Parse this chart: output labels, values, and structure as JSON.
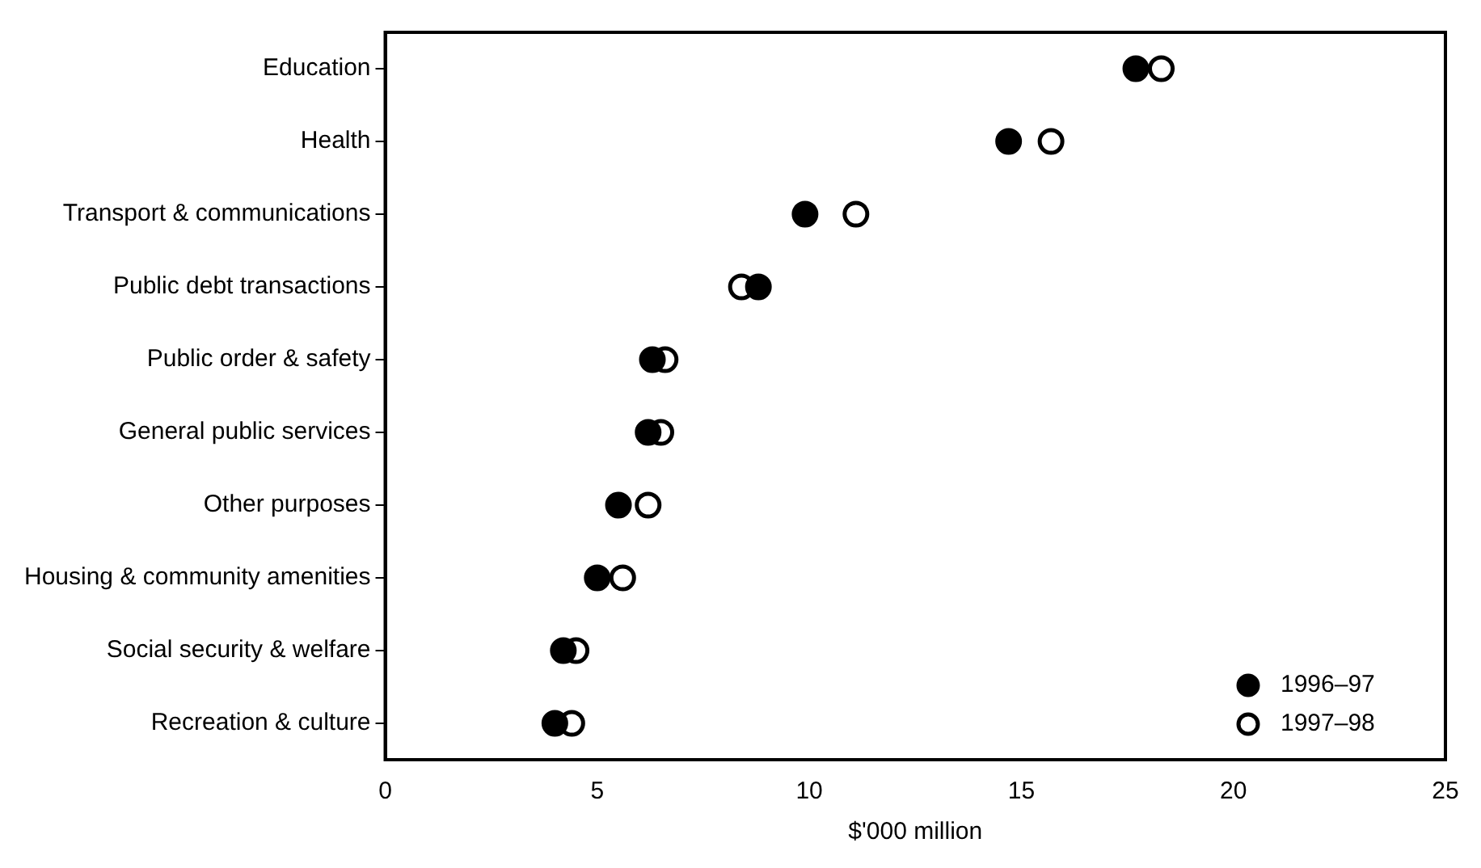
{
  "chart_data": {
    "type": "scatter",
    "orientation": "horizontal",
    "xlabel": "$'000 million",
    "categories": [
      "Education",
      "Health",
      "Transport & communications",
      "Public debt transactions",
      "Public order & safety",
      "General public services",
      "Other purposes",
      "Housing & community amenities",
      "Social security & welfare",
      "Recreation & culture"
    ],
    "series": [
      {
        "name": "1996–97",
        "color": "#000000",
        "values": [
          17.7,
          14.7,
          9.9,
          8.8,
          6.3,
          6.2,
          5.5,
          5.0,
          4.2,
          4.0
        ]
      },
      {
        "name": "1997–98",
        "color": "#000000",
        "values": [
          18.3,
          15.7,
          11.1,
          8.4,
          6.6,
          6.5,
          6.2,
          5.6,
          4.5,
          4.4
        ]
      }
    ],
    "xlim": [
      0,
      25
    ],
    "xticks": [
      0,
      5,
      10,
      15,
      20,
      25
    ],
    "grid": false,
    "legend": "bottom right",
    "marker": "circle"
  }
}
